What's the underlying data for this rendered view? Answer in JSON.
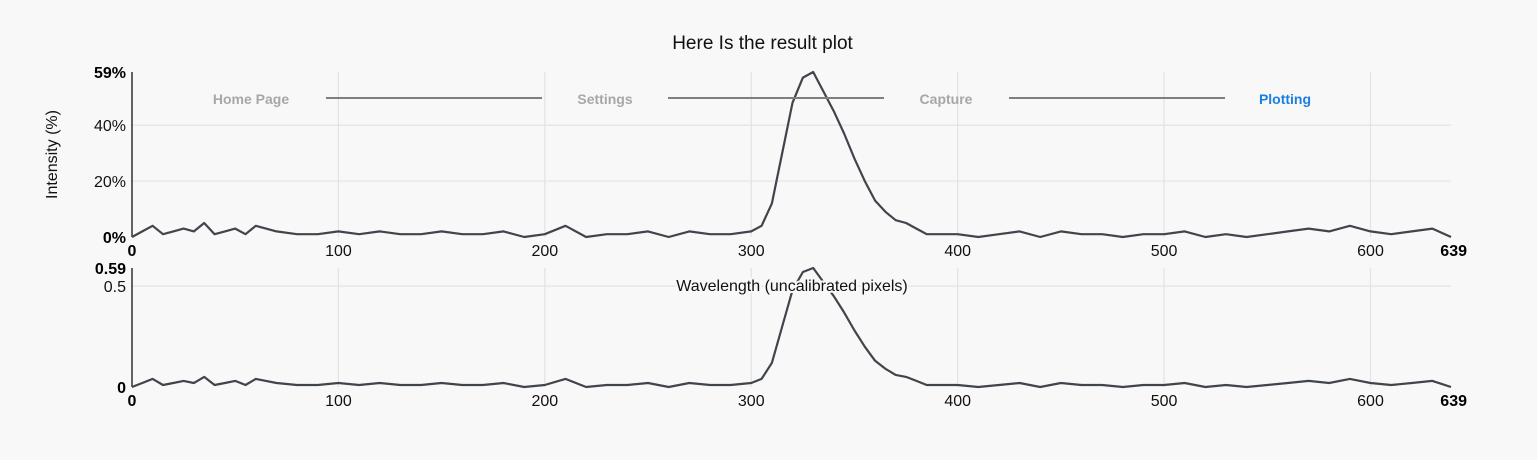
{
  "title": "Here Is the result plot",
  "wizard": {
    "steps": [
      {
        "label": "Home Page",
        "active": false
      },
      {
        "label": "Settings",
        "active": false
      },
      {
        "label": "Capture",
        "active": false
      },
      {
        "label": "Plotting",
        "active": true
      }
    ],
    "active_color": "#1a7fe0",
    "inactive_color": "#a7a7a7"
  },
  "chart_data": [
    {
      "type": "line",
      "ylabel": "Intensity (%)",
      "xlim": [
        0,
        639
      ],
      "ylim": [
        0,
        59
      ],
      "x_ticks": [
        "0",
        "100",
        "200",
        "300",
        "400",
        "500",
        "600",
        "639"
      ],
      "y_ticks": [
        "0%",
        "20%",
        "40%",
        "59%"
      ],
      "grid": true,
      "line_color": "#40454c",
      "series": [
        {
          "x": [
            0,
            5,
            10,
            15,
            20,
            25,
            30,
            35,
            40,
            45,
            50,
            55,
            60,
            70,
            80,
            90,
            100,
            110,
            120,
            130,
            140,
            150,
            160,
            170,
            180,
            190,
            200,
            210,
            220,
            230,
            240,
            250,
            260,
            270,
            280,
            290,
            300,
            305,
            310,
            315,
            320,
            325,
            330,
            335,
            340,
            345,
            350,
            355,
            360,
            365,
            370,
            375,
            380,
            385,
            390,
            400,
            410,
            420,
            430,
            440,
            450,
            460,
            470,
            480,
            490,
            500,
            510,
            520,
            530,
            540,
            550,
            560,
            570,
            580,
            590,
            600,
            610,
            620,
            630,
            639
          ],
          "values": [
            0,
            2,
            4,
            1,
            2,
            3,
            2,
            5,
            1,
            2,
            3,
            1,
            4,
            2,
            1,
            1,
            2,
            1,
            2,
            1,
            1,
            2,
            1,
            1,
            2,
            0,
            1,
            4,
            0,
            1,
            1,
            2,
            0,
            2,
            1,
            1,
            2,
            4,
            12,
            30,
            48,
            57,
            59,
            52,
            45,
            37,
            28,
            20,
            13,
            9,
            6,
            5,
            3,
            1,
            1,
            1,
            0,
            1,
            2,
            0,
            2,
            1,
            1,
            0,
            1,
            1,
            2,
            0,
            1,
            0,
            1,
            2,
            3,
            2,
            4,
            2,
            1,
            2,
            3,
            0
          ]
        }
      ]
    },
    {
      "type": "line",
      "xlabel": "Wavelength (uncalibrated pixels)",
      "xlim": [
        0,
        639
      ],
      "ylim": [
        0,
        0.59
      ],
      "x_ticks": [
        "0",
        "100",
        "200",
        "300",
        "400",
        "500",
        "600",
        "639"
      ],
      "y_ticks": [
        "0",
        "0.5",
        "0.59"
      ],
      "grid": true,
      "line_color": "#40454c",
      "series": [
        {
          "x": [
            0,
            5,
            10,
            15,
            20,
            25,
            30,
            35,
            40,
            45,
            50,
            55,
            60,
            70,
            80,
            90,
            100,
            110,
            120,
            130,
            140,
            150,
            160,
            170,
            180,
            190,
            200,
            210,
            220,
            230,
            240,
            250,
            260,
            270,
            280,
            290,
            300,
            305,
            310,
            315,
            320,
            325,
            330,
            335,
            340,
            345,
            350,
            355,
            360,
            365,
            370,
            375,
            380,
            385,
            390,
            400,
            410,
            420,
            430,
            440,
            450,
            460,
            470,
            480,
            490,
            500,
            510,
            520,
            530,
            540,
            550,
            560,
            570,
            580,
            590,
            600,
            610,
            620,
            630,
            639
          ],
          "values": [
            0,
            0.02,
            0.04,
            0.01,
            0.02,
            0.03,
            0.02,
            0.05,
            0.01,
            0.02,
            0.03,
            0.01,
            0.04,
            0.02,
            0.01,
            0.01,
            0.02,
            0.01,
            0.02,
            0.01,
            0.01,
            0.02,
            0.01,
            0.01,
            0.02,
            0,
            0.01,
            0.04,
            0,
            0.01,
            0.01,
            0.02,
            0,
            0.02,
            0.01,
            0.01,
            0.02,
            0.04,
            0.12,
            0.3,
            0.48,
            0.57,
            0.59,
            0.52,
            0.45,
            0.37,
            0.28,
            0.2,
            0.13,
            0.09,
            0.06,
            0.05,
            0.03,
            0.01,
            0.01,
            0.01,
            0,
            0.01,
            0.02,
            0,
            0.02,
            0.01,
            0.01,
            0,
            0.01,
            0.01,
            0.02,
            0,
            0.01,
            0,
            0.01,
            0.02,
            0.03,
            0.02,
            0.04,
            0.02,
            0.01,
            0.02,
            0.03,
            0
          ]
        }
      ]
    }
  ]
}
